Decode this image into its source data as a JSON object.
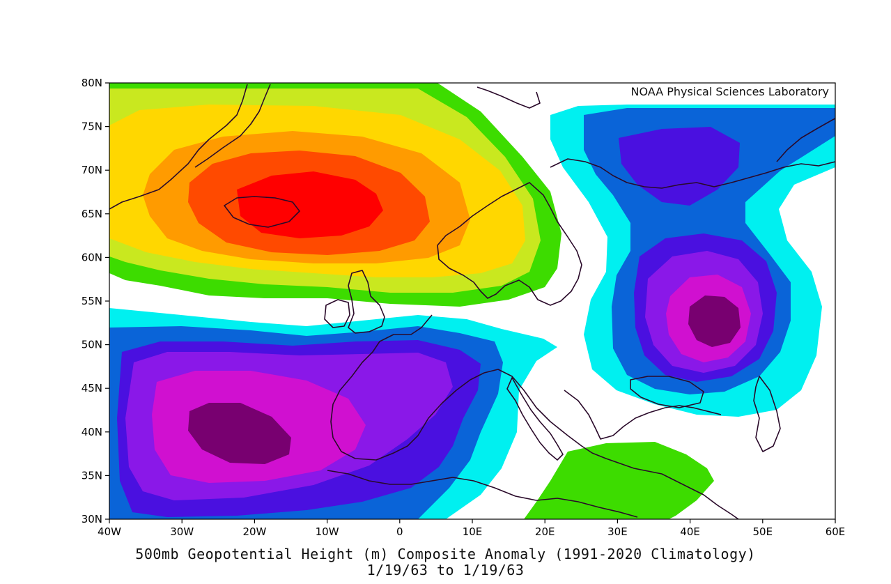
{
  "credit": "NOAA Physical Sciences Laboratory",
  "title": "500mb Geopotential Height (m) Composite Anomaly (1991-2020 Climatology)",
  "date_range": "1/19/63  to 1/19/63",
  "axes": {
    "lat_labels": [
      "80N",
      "75N",
      "70N",
      "65N",
      "60N",
      "55N",
      "50N",
      "45N",
      "40N",
      "35N",
      "30N"
    ],
    "lon_labels": [
      "40W",
      "30W",
      "20W",
      "10W",
      "0",
      "10E",
      "20E",
      "30E",
      "40E",
      "50E",
      "60E"
    ],
    "lon_range": [
      -40,
      60
    ],
    "lat_range": [
      30,
      80
    ]
  },
  "palette": {
    "strong_positive": "#ff0000",
    "positive_4": "#ff4a00",
    "positive_3": "#ff9b00",
    "positive_2": "#ffd700",
    "positive_1": "#c9e81f",
    "weak_positive": "#3ddc00",
    "weak_negative": "#00f0f0",
    "negative_1": "#0a64d8",
    "negative_2": "#4a10e0",
    "negative_3": "#8a18e8",
    "negative_4": "#d010d0",
    "strong_negative": "#780070",
    "coastline": "#2a0a2a"
  },
  "anomaly_centers": [
    {
      "sign": "positive",
      "center_lon": -10,
      "center_lat": 66
    },
    {
      "sign": "negative",
      "center_lon": -22,
      "center_lat": 40
    },
    {
      "sign": "negative",
      "center_lon": 43,
      "center_lat": 53
    },
    {
      "sign": "negative",
      "center_lon": 34,
      "center_lat": 72
    },
    {
      "sign": "positive",
      "center_lon": 33,
      "center_lat": 34
    }
  ]
}
